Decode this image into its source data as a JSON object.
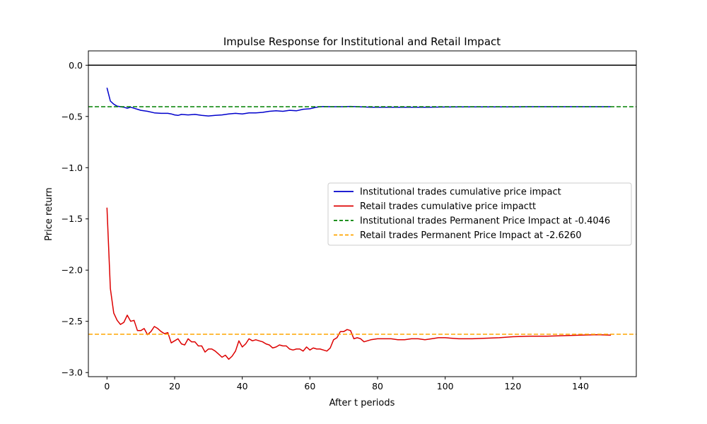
{
  "chart_data": {
    "type": "line",
    "title": "Impulse Response for Institutional and Retail Impact",
    "xlabel": "After t periods",
    "ylabel": "Price return",
    "xlim": [
      -5.5,
      156.5
    ],
    "ylim": [
      -3.04,
      0.14
    ],
    "x_ticks": [
      0,
      20,
      40,
      60,
      80,
      100,
      120,
      140
    ],
    "x_tick_labels": [
      "0",
      "20",
      "40",
      "60",
      "80",
      "100",
      "120",
      "140"
    ],
    "y_ticks": [
      0.0,
      -0.5,
      -1.0,
      -1.5,
      -2.0,
      -2.5,
      -3.0
    ],
    "y_tick_labels": [
      "0.0",
      "−0.5",
      "−1.0",
      "−1.5",
      "−2.0",
      "−2.5",
      "−3.0"
    ],
    "grid": false,
    "legend_position": "center-right",
    "zero_line": {
      "y": 0.0,
      "color": "#000000"
    },
    "series": [
      {
        "name": "Institutional trades cumulative price impact",
        "color": "#0000cc",
        "style": "solid",
        "x": [
          0,
          1,
          2,
          3,
          4,
          5,
          6,
          7,
          8,
          9,
          10,
          12,
          14,
          16,
          18,
          19,
          20,
          21,
          22,
          24,
          26,
          28,
          30,
          32,
          34,
          36,
          38,
          40,
          42,
          44,
          46,
          48,
          50,
          52,
          54,
          56,
          58,
          60,
          62,
          63,
          64,
          66,
          68,
          70,
          72,
          74,
          76,
          78,
          80,
          85,
          90,
          95,
          100,
          105,
          110,
          115,
          120,
          125,
          130,
          135,
          140,
          145,
          149
        ],
        "y": [
          -0.22,
          -0.35,
          -0.38,
          -0.4,
          -0.405,
          -0.41,
          -0.42,
          -0.41,
          -0.42,
          -0.43,
          -0.44,
          -0.45,
          -0.465,
          -0.47,
          -0.47,
          -0.475,
          -0.485,
          -0.49,
          -0.48,
          -0.485,
          -0.48,
          -0.49,
          -0.495,
          -0.49,
          -0.485,
          -0.475,
          -0.47,
          -0.475,
          -0.465,
          -0.465,
          -0.46,
          -0.45,
          -0.445,
          -0.45,
          -0.44,
          -0.445,
          -0.43,
          -0.425,
          -0.41,
          -0.405,
          -0.403,
          -0.405,
          -0.405,
          -0.405,
          -0.402,
          -0.405,
          -0.408,
          -0.41,
          -0.41,
          -0.41,
          -0.41,
          -0.41,
          -0.408,
          -0.407,
          -0.407,
          -0.406,
          -0.406,
          -0.405,
          -0.405,
          -0.405,
          -0.405,
          -0.405,
          -0.405
        ]
      },
      {
        "name": "Retail trades cumulative price impactt",
        "color": "#dd0000",
        "style": "solid",
        "x": [
          0,
          1,
          2,
          3,
          4,
          5,
          6,
          7,
          8,
          9,
          10,
          11,
          12,
          13,
          14,
          15,
          16,
          17,
          18,
          19,
          20,
          21,
          22,
          23,
          24,
          25,
          26,
          27,
          28,
          29,
          30,
          31,
          32,
          33,
          34,
          35,
          36,
          37,
          38,
          39,
          40,
          41,
          42,
          43,
          44,
          45,
          46,
          47,
          48,
          49,
          50,
          51,
          52,
          53,
          54,
          55,
          56,
          57,
          58,
          59,
          60,
          61,
          62,
          63,
          64,
          65,
          66,
          67,
          68,
          69,
          70,
          71,
          72,
          73,
          74,
          75,
          76,
          78,
          80,
          82,
          84,
          86,
          88,
          90,
          92,
          94,
          96,
          98,
          100,
          104,
          108,
          112,
          116,
          120,
          125,
          130,
          135,
          140,
          145,
          149
        ],
        "y": [
          -1.39,
          -2.18,
          -2.42,
          -2.49,
          -2.53,
          -2.51,
          -2.44,
          -2.5,
          -2.49,
          -2.59,
          -2.59,
          -2.57,
          -2.63,
          -2.6,
          -2.55,
          -2.57,
          -2.6,
          -2.62,
          -2.61,
          -2.71,
          -2.69,
          -2.67,
          -2.72,
          -2.73,
          -2.67,
          -2.7,
          -2.7,
          -2.74,
          -2.74,
          -2.8,
          -2.77,
          -2.77,
          -2.79,
          -2.82,
          -2.85,
          -2.83,
          -2.87,
          -2.84,
          -2.79,
          -2.69,
          -2.75,
          -2.72,
          -2.67,
          -2.69,
          -2.68,
          -2.69,
          -2.7,
          -2.72,
          -2.73,
          -2.76,
          -2.75,
          -2.73,
          -2.74,
          -2.74,
          -2.77,
          -2.78,
          -2.77,
          -2.77,
          -2.79,
          -2.75,
          -2.78,
          -2.76,
          -2.77,
          -2.77,
          -2.78,
          -2.79,
          -2.76,
          -2.68,
          -2.66,
          -2.6,
          -2.6,
          -2.58,
          -2.59,
          -2.67,
          -2.66,
          -2.67,
          -2.7,
          -2.68,
          -2.67,
          -2.67,
          -2.67,
          -2.68,
          -2.68,
          -2.67,
          -2.67,
          -2.68,
          -2.67,
          -2.66,
          -2.66,
          -2.67,
          -2.67,
          -2.665,
          -2.66,
          -2.65,
          -2.645,
          -2.645,
          -2.64,
          -2.635,
          -2.63,
          -2.635
        ]
      },
      {
        "name": "Institutional trades Permanent Price Impact at -0.4046",
        "color": "#008000",
        "style": "dashed",
        "hline": -0.4046
      },
      {
        "name": "Retail trades Permanent Price Impact at -2.6260",
        "color": "#ffa500",
        "style": "dashed",
        "hline": -2.626
      }
    ]
  }
}
